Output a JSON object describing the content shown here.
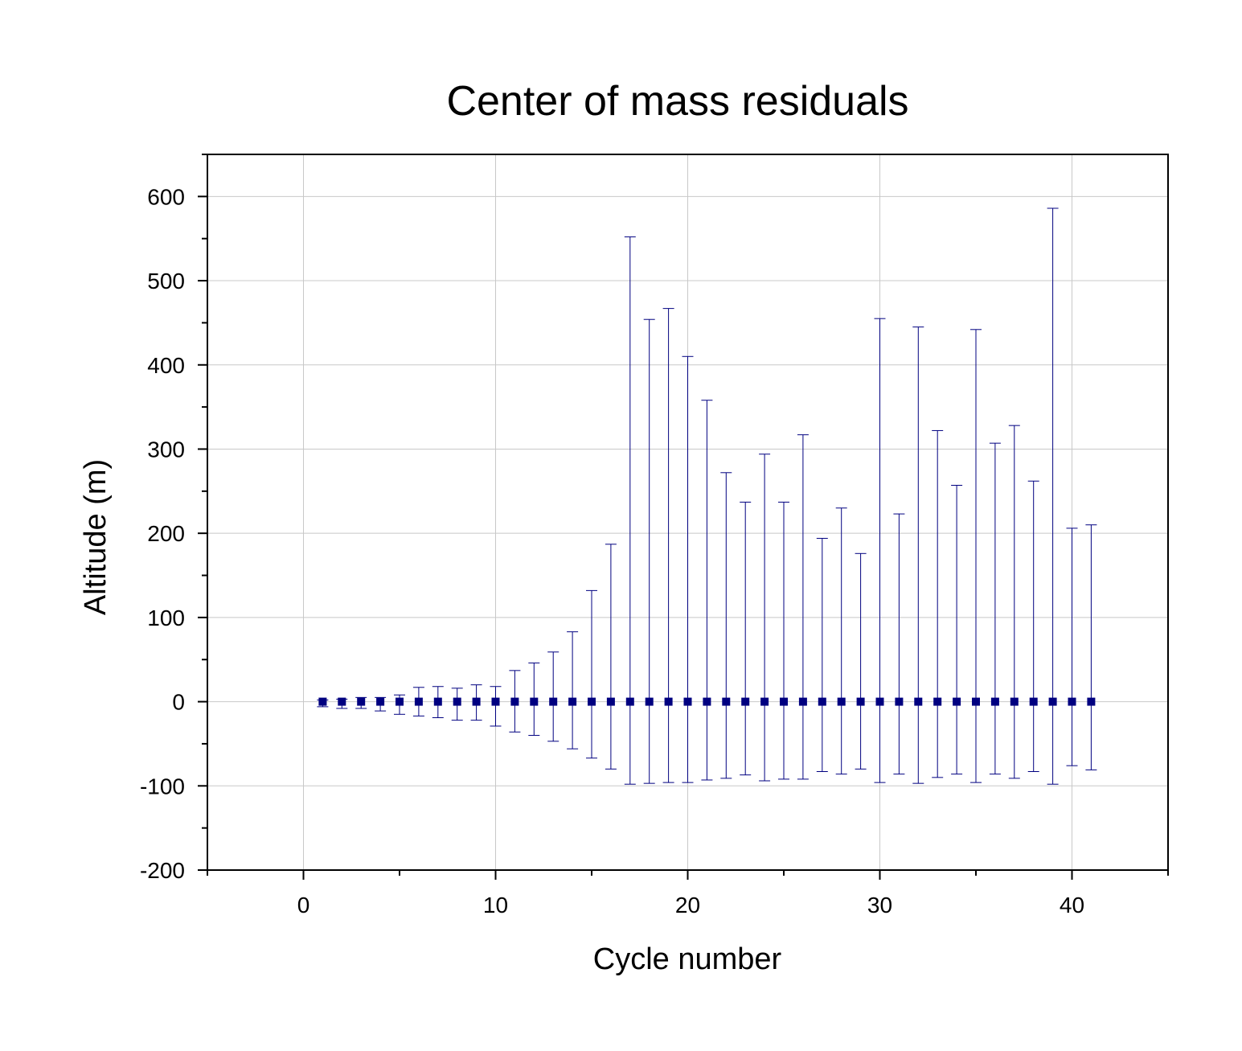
{
  "chart_data": {
    "type": "scatter",
    "title": "Center of mass residuals",
    "xlabel": "Cycle number",
    "ylabel": "Altitude (m)",
    "xlim": [
      -5,
      45
    ],
    "ylim": [
      -200,
      650
    ],
    "xticks": [
      0,
      10,
      20,
      30,
      40
    ],
    "xtick_labels": [
      "0",
      "10",
      "20",
      "30",
      "40"
    ],
    "yticks": [
      -200,
      -100,
      0,
      100,
      200,
      300,
      400,
      500,
      600
    ],
    "ytick_labels": [
      "-200",
      "-100",
      "0",
      "100",
      "200",
      "300",
      "400",
      "500",
      "600"
    ],
    "grid": true,
    "colors": {
      "series": "#000080",
      "grid": "#c8c8c8",
      "axes": "#000000"
    },
    "series": [
      {
        "marker": "square",
        "x": [
          1,
          2,
          3,
          4,
          5,
          6,
          7,
          8,
          9,
          10,
          11,
          12,
          13,
          14,
          15,
          16,
          17,
          18,
          19,
          20,
          21,
          22,
          23,
          24,
          25,
          26,
          27,
          28,
          29,
          30,
          31,
          32,
          33,
          34,
          35,
          36,
          37,
          38,
          39,
          40,
          41
        ],
        "y": [
          0,
          0,
          0,
          0,
          0,
          0,
          0,
          0,
          0,
          0,
          0,
          0,
          0,
          0,
          0,
          0,
          0,
          0,
          0,
          0,
          0,
          0,
          0,
          0,
          0,
          0,
          0,
          0,
          0,
          0,
          0,
          0,
          0,
          0,
          0,
          0,
          0,
          0,
          0,
          0,
          0
        ],
        "err_upper": [
          2,
          3,
          5,
          5,
          8,
          17,
          18,
          16,
          20,
          18,
          37,
          46,
          59,
          83,
          132,
          187,
          552,
          454,
          467,
          410,
          358,
          272,
          237,
          294,
          237,
          317,
          194,
          230,
          176,
          455,
          223,
          445,
          322,
          257,
          442,
          307,
          328,
          262,
          586,
          206,
          210
        ],
        "err_lower": [
          -6,
          -8,
          -8,
          -11,
          -15,
          -17,
          -19,
          -22,
          -22,
          -29,
          -36,
          -40,
          -47,
          -56,
          -67,
          -80,
          -98,
          -97,
          -96,
          -96,
          -93,
          -91,
          -87,
          -94,
          -92,
          -92,
          -83,
          -86,
          -80,
          -96,
          -86,
          -97,
          -90,
          -86,
          -96,
          -86,
          -91,
          -83,
          -98,
          -76,
          -81
        ]
      }
    ]
  }
}
